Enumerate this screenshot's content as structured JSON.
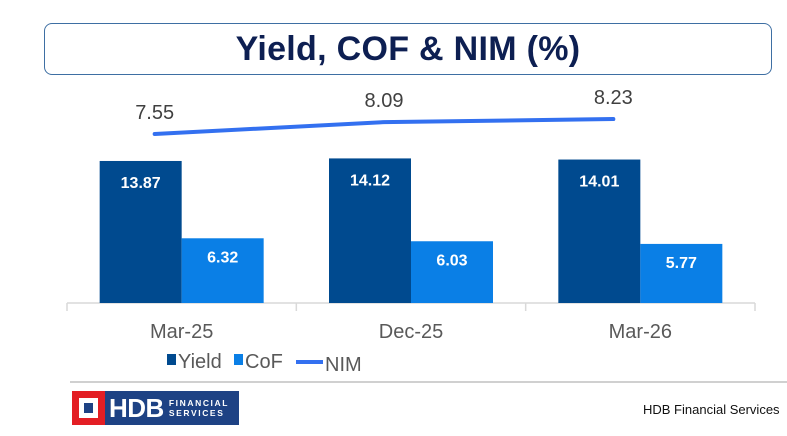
{
  "chart_data": {
    "type": "bar",
    "title": "Yield, COF & NIM (%)",
    "categories": [
      "Mar-25",
      "Dec-25",
      "Mar-26"
    ],
    "series": [
      {
        "name": "Yield",
        "type": "bar",
        "color": "#004a8f",
        "values": [
          13.87,
          14.12,
          14.01
        ]
      },
      {
        "name": "CoF",
        "type": "bar",
        "color": "#0a7fe6",
        "values": [
          6.32,
          6.03,
          5.77
        ]
      },
      {
        "name": "NIM",
        "type": "line",
        "color": "#3370f0",
        "values": [
          7.55,
          8.09,
          8.23
        ]
      }
    ],
    "labels": {
      "Yield": [
        "13.87",
        "14.12",
        "14.01"
      ],
      "CoF": [
        "6.32",
        "6.03",
        "5.77"
      ],
      "NIM": [
        "7.55",
        "8.09",
        "8.23"
      ]
    },
    "legend": [
      "Yield",
      "CoF",
      "NIM"
    ],
    "legend_position": "bottom",
    "grid": false,
    "xlabel": "",
    "ylabel": ""
  },
  "footer": {
    "logo_main": "HDB",
    "logo_line1": "FINANCIAL",
    "logo_line2": "SERVICES",
    "text": "HDB Financial Services"
  }
}
